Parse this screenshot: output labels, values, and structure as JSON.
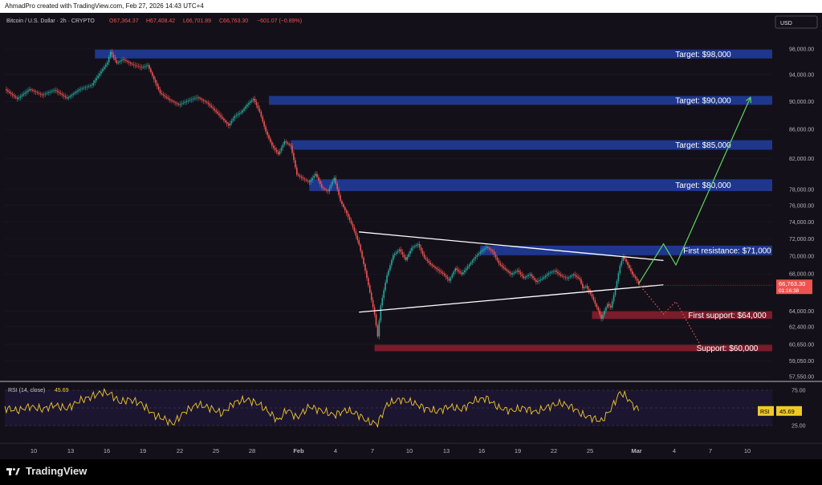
{
  "header": {
    "text": "AhmadPro created with TradingView.com, Feb 27, 2026 14:43 UTC+4"
  },
  "chart_data": {
    "type": "candlestick",
    "symbol_line": "Bitcoin / U.S. Dollar · 2h · CRYPTO",
    "ohlc": {
      "open": "O67,364.37",
      "high": "H67,408.42",
      "low": "L66,701.89",
      "close": "C66,763.30",
      "change": "−601.07 (−0.89%)"
    },
    "currency_button": "USD",
    "price_scale": "log",
    "y_ticks": [
      "98,000.00",
      "94,000.00",
      "90,000.00",
      "86,000.00",
      "82,000.00",
      "78,000.00",
      "76,000.00",
      "74,000.00",
      "72,000.00",
      "70,000.00",
      "68,000.00",
      "64,000.00",
      "62,400.00",
      "60,650.00",
      "59,050.00",
      "57,550.00"
    ],
    "x_ticks": [
      "10",
      "13",
      "16",
      "19",
      "22",
      "25",
      "28",
      "Feb",
      "4",
      "7",
      "10",
      "13",
      "16",
      "19",
      "22",
      "25",
      "Mar",
      "4",
      "7",
      "10"
    ],
    "price_path": [
      [
        0,
        91800
      ],
      [
        4,
        90200
      ],
      [
        8,
        91500
      ],
      [
        12,
        90600
      ],
      [
        16,
        91400
      ],
      [
        20,
        90300
      ],
      [
        24,
        91800
      ],
      [
        28,
        92600
      ],
      [
        31,
        94800
      ],
      [
        33,
        96200
      ],
      [
        34,
        97900
      ],
      [
        36,
        96100
      ],
      [
        38,
        96700
      ],
      [
        41,
        95800
      ],
      [
        44,
        95200
      ],
      [
        46,
        95500
      ],
      [
        48,
        93200
      ],
      [
        50,
        91100
      ],
      [
        53,
        90000
      ],
      [
        56,
        89200
      ],
      [
        59,
        89800
      ],
      [
        62,
        90300
      ],
      [
        65,
        89600
      ],
      [
        68,
        88400
      ],
      [
        70,
        87500
      ],
      [
        72,
        86600
      ],
      [
        74,
        88000
      ],
      [
        76,
        88600
      ],
      [
        78,
        89800
      ],
      [
        80,
        90700
      ],
      [
        82,
        88800
      ],
      [
        84,
        86000
      ],
      [
        86,
        84000
      ],
      [
        88,
        82800
      ],
      [
        90,
        84500
      ],
      [
        92,
        83800
      ],
      [
        94,
        79900
      ],
      [
        96,
        79300
      ],
      [
        98,
        78800
      ],
      [
        100,
        79800
      ],
      [
        102,
        78000
      ],
      [
        104,
        77500
      ],
      [
        106,
        79200
      ],
      [
        108,
        76300
      ],
      [
        110,
        74800
      ],
      [
        112,
        73200
      ],
      [
        114,
        71200
      ],
      [
        116,
        68300
      ],
      [
        118,
        65200
      ],
      [
        119,
        63700
      ],
      [
        120,
        61500
      ],
      [
        121,
        64700
      ],
      [
        123,
        68000
      ],
      [
        125,
        70300
      ],
      [
        127,
        71000
      ],
      [
        129,
        69800
      ],
      [
        131,
        71200
      ],
      [
        133,
        71600
      ],
      [
        135,
        70000
      ],
      [
        137,
        69200
      ],
      [
        139,
        68600
      ],
      [
        141,
        68000
      ],
      [
        143,
        67200
      ],
      [
        145,
        68500
      ],
      [
        147,
        67800
      ],
      [
        149,
        68600
      ],
      [
        151,
        69500
      ],
      [
        153,
        70200
      ],
      [
        155,
        70800
      ],
      [
        157,
        70300
      ],
      [
        159,
        69000
      ],
      [
        161,
        68400
      ],
      [
        163,
        67900
      ],
      [
        165,
        68400
      ],
      [
        167,
        67600
      ],
      [
        169,
        68100
      ],
      [
        171,
        67300
      ],
      [
        173,
        67700
      ],
      [
        175,
        68300
      ],
      [
        177,
        68600
      ],
      [
        179,
        68000
      ],
      [
        181,
        67700
      ],
      [
        183,
        68100
      ],
      [
        185,
        67500
      ],
      [
        186,
        66500
      ],
      [
        187,
        66700
      ],
      [
        189,
        65500
      ],
      [
        190,
        64700
      ],
      [
        191,
        64000
      ],
      [
        192,
        63100
      ],
      [
        193,
        63900
      ],
      [
        194,
        64600
      ],
      [
        195,
        64200
      ],
      [
        196,
        65500
      ],
      [
        197,
        67000
      ],
      [
        198,
        68700
      ],
      [
        199,
        69700
      ],
      [
        200,
        69100
      ],
      [
        201,
        68400
      ],
      [
        202,
        67700
      ],
      [
        203,
        67300
      ],
      [
        204,
        66763
      ]
    ],
    "zones": [
      {
        "label": "Target: $98,000",
        "kind": "target",
        "top": 97900,
        "bottom": 96500,
        "from": 29
      },
      {
        "label": "Target: $90,000",
        "kind": "target",
        "top": 90800,
        "bottom": 89500,
        "from": 85
      },
      {
        "label": "Target: $85,000",
        "kind": "target",
        "top": 84500,
        "bottom": 83200,
        "from": 92
      },
      {
        "label": "Target: $80,000",
        "kind": "target",
        "top": 79300,
        "bottom": 77800,
        "from": 98
      },
      {
        "label": "First resistance: $71,000",
        "kind": "resistance",
        "top": 71200,
        "bottom": 70100,
        "from": 153
      },
      {
        "label": "First support: $64,000",
        "kind": "support",
        "top": 64000,
        "bottom": 63200,
        "from": 189
      },
      {
        "label": "Support: $60,000",
        "kind": "support",
        "top": 60600,
        "bottom": 60000,
        "from": 119
      }
    ],
    "triangle": {
      "upper": [
        [
          114,
          72800
        ],
        [
          212,
          69500
        ]
      ],
      "lower": [
        [
          114,
          63900
        ],
        [
          212,
          66800
        ]
      ]
    },
    "bull_path": [
      [
        204,
        66900
      ],
      [
        212,
        71400
      ],
      [
        216,
        69000
      ],
      [
        240,
        90600
      ]
    ],
    "bear_path": [
      [
        204,
        66900
      ],
      [
        212,
        63700
      ],
      [
        216,
        65000
      ],
      [
        224,
        60500
      ]
    ],
    "last_price": {
      "value": "66,763.30",
      "countdown": "01:16:38",
      "price": 66763.3
    },
    "rsi": {
      "label": "RSI (14, close)",
      "value": "45.69",
      "ticks": [
        "75.00",
        "25.00"
      ],
      "series": [
        [
          0,
          50
        ],
        [
          4,
          46
        ],
        [
          8,
          52
        ],
        [
          12,
          48
        ],
        [
          16,
          54
        ],
        [
          20,
          49
        ],
        [
          24,
          60
        ],
        [
          28,
          66
        ],
        [
          31,
          72
        ],
        [
          34,
          70
        ],
        [
          37,
          58
        ],
        [
          40,
          62
        ],
        [
          44,
          56
        ],
        [
          48,
          40
        ],
        [
          52,
          33
        ],
        [
          54,
          27
        ],
        [
          58,
          45
        ],
        [
          62,
          55
        ],
        [
          66,
          50
        ],
        [
          70,
          42
        ],
        [
          74,
          58
        ],
        [
          78,
          62
        ],
        [
          82,
          55
        ],
        [
          86,
          40
        ],
        [
          88,
          32
        ],
        [
          91,
          48
        ],
        [
          94,
          36
        ],
        [
          98,
          52
        ],
        [
          102,
          46
        ],
        [
          106,
          40
        ],
        [
          110,
          47
        ],
        [
          114,
          40
        ],
        [
          117,
          30
        ],
        [
          120,
          28
        ],
        [
          123,
          55
        ],
        [
          127,
          62
        ],
        [
          131,
          58
        ],
        [
          135,
          50
        ],
        [
          139,
          45
        ],
        [
          143,
          52
        ],
        [
          147,
          48
        ],
        [
          151,
          60
        ],
        [
          155,
          64
        ],
        [
          159,
          50
        ],
        [
          163,
          46
        ],
        [
          167,
          50
        ],
        [
          171,
          44
        ],
        [
          175,
          52
        ],
        [
          179,
          57
        ],
        [
          183,
          50
        ],
        [
          186,
          40
        ],
        [
          189,
          36
        ],
        [
          192,
          31
        ],
        [
          195,
          48
        ],
        [
          198,
          72
        ],
        [
          200,
          66
        ],
        [
          202,
          55
        ],
        [
          204,
          45.69
        ]
      ]
    }
  }
}
